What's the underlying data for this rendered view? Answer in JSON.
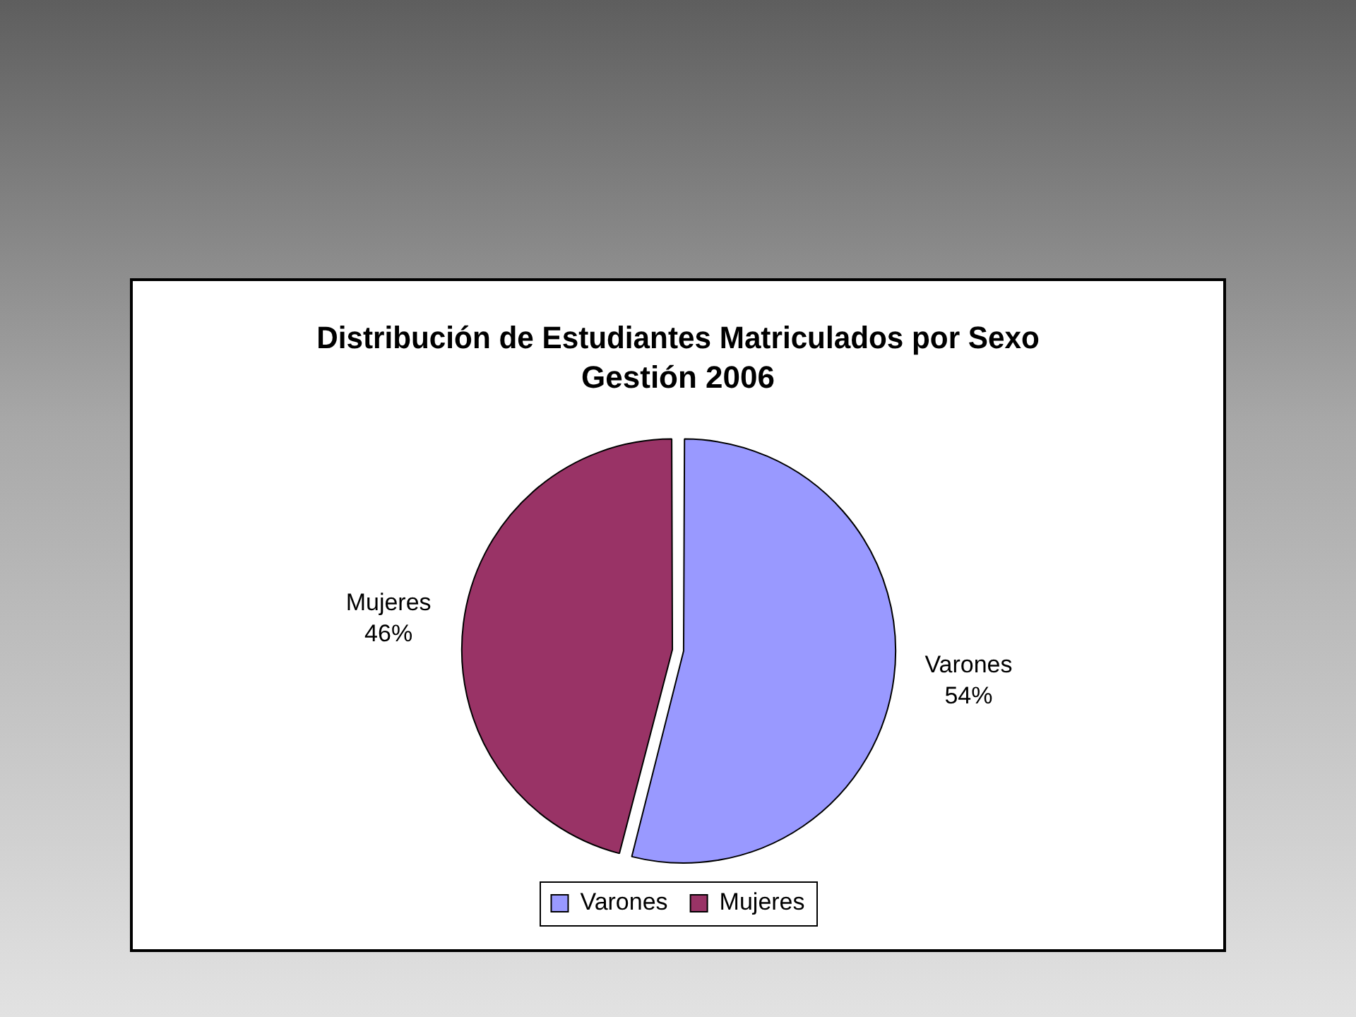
{
  "chart_data": {
    "type": "pie",
    "title": "Distribución de Estudiantes Matriculados por Sexo",
    "subtitle": "Gestión 2006",
    "categories": [
      "Varones",
      "Mujeres"
    ],
    "values": [
      54,
      46
    ],
    "colors": [
      "#9999ff",
      "#993366"
    ],
    "value_labels": [
      "54%",
      "46%"
    ],
    "legend": "bottom"
  }
}
